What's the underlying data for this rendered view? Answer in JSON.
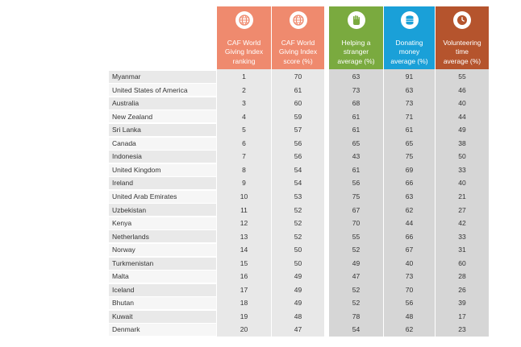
{
  "colors": {
    "caf_header": "#ef8a6e",
    "caf_col_bg": "#e8e8e8",
    "helping_header": "#7aaa3f",
    "donating_header": "#1aa0d8",
    "volunteering_header": "#b5542d",
    "stat_col_bg": "#d6d6d6"
  },
  "headers": {
    "ranking": "CAF World\nGiving Index\nranking",
    "score": "CAF World\nGiving Index\nscore (%)",
    "helping": "Helping a\nstranger\naverage (%)",
    "donating": "Donating\nmoney\naverage (%)",
    "volunteering": "Volunteering\ntime\naverage (%)"
  },
  "icons": {
    "ranking": "globe-icon",
    "score": "globe-icon",
    "helping": "hand-icon",
    "donating": "coins-icon",
    "volunteering": "clock-icon"
  },
  "rows": [
    {
      "country": "Myanmar",
      "rank": "1",
      "score": "70",
      "helping": "63",
      "donating": "91",
      "volunteering": "55"
    },
    {
      "country": "United States of America",
      "rank": "2",
      "score": "61",
      "helping": "73",
      "donating": "63",
      "volunteering": "46"
    },
    {
      "country": "Australia",
      "rank": "3",
      "score": "60",
      "helping": "68",
      "donating": "73",
      "volunteering": "40"
    },
    {
      "country": "New Zealand",
      "rank": "4",
      "score": "59",
      "helping": "61",
      "donating": "71",
      "volunteering": "44"
    },
    {
      "country": "Sri Lanka",
      "rank": "5",
      "score": "57",
      "helping": "61",
      "donating": "61",
      "volunteering": "49"
    },
    {
      "country": "Canada",
      "rank": "6",
      "score": "56",
      "helping": "65",
      "donating": "65",
      "volunteering": "38"
    },
    {
      "country": "Indonesia",
      "rank": "7",
      "score": "56",
      "helping": "43",
      "donating": "75",
      "volunteering": "50"
    },
    {
      "country": "United Kingdom",
      "rank": "8",
      "score": "54",
      "helping": "61",
      "donating": "69",
      "volunteering": "33"
    },
    {
      "country": "Ireland",
      "rank": "9",
      "score": "54",
      "helping": "56",
      "donating": "66",
      "volunteering": "40"
    },
    {
      "country": "United Arab Emirates",
      "rank": "10",
      "score": "53",
      "helping": "75",
      "donating": "63",
      "volunteering": "21"
    },
    {
      "country": "Uzbekistan",
      "rank": "11",
      "score": "52",
      "helping": "67",
      "donating": "62",
      "volunteering": "27"
    },
    {
      "country": "Kenya",
      "rank": "12",
      "score": "52",
      "helping": "70",
      "donating": "44",
      "volunteering": "42"
    },
    {
      "country": "Netherlands",
      "rank": "13",
      "score": "52",
      "helping": "55",
      "donating": "66",
      "volunteering": "33"
    },
    {
      "country": "Norway",
      "rank": "14",
      "score": "50",
      "helping": "52",
      "donating": "67",
      "volunteering": "31"
    },
    {
      "country": "Turkmenistan",
      "rank": "15",
      "score": "50",
      "helping": "49",
      "donating": "40",
      "volunteering": "60"
    },
    {
      "country": "Malta",
      "rank": "16",
      "score": "49",
      "helping": "47",
      "donating": "73",
      "volunteering": "28"
    },
    {
      "country": "Iceland",
      "rank": "17",
      "score": "49",
      "helping": "52",
      "donating": "70",
      "volunteering": "26"
    },
    {
      "country": "Bhutan",
      "rank": "18",
      "score": "49",
      "helping": "52",
      "donating": "56",
      "volunteering": "39"
    },
    {
      "country": "Kuwait",
      "rank": "19",
      "score": "48",
      "helping": "78",
      "donating": "48",
      "volunteering": "17"
    },
    {
      "country": "Denmark",
      "rank": "20",
      "score": "47",
      "helping": "54",
      "donating": "62",
      "volunteering": "23"
    }
  ]
}
